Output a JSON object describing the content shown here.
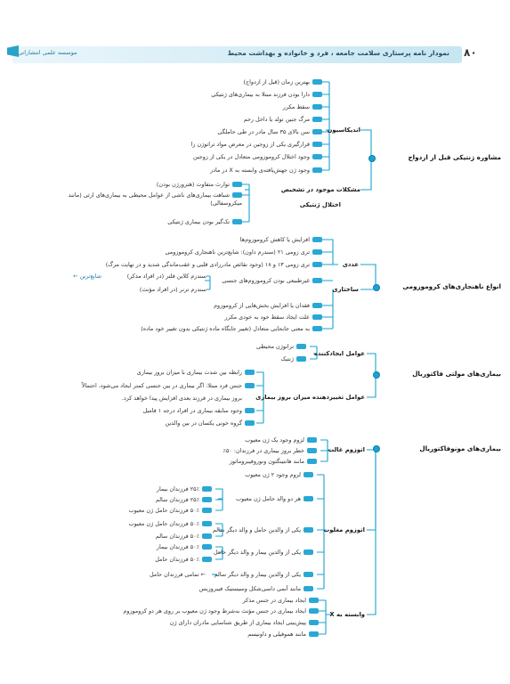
{
  "header": {
    "page_number": "۸۰",
    "title": "نمودار نامه پرستاری سلامت جامعه ، فرد و خانواده و بهداشت محیط",
    "brand": "موسسه علمی انتشاراتی"
  },
  "mindmap": {
    "genetic_counseling": {
      "title": "مشاوره ژنتیکی قبل از ازدواج",
      "indications": {
        "title": "اندیکاسیون",
        "items": [
          "بهترین زمان (قبل از ازدواج)",
          "دارا بودن فرزند مبتلا به بیماری‌های ژنتیکی",
          "سقط مکرر",
          "مرگ جنین تولد یا داخل رحم",
          "سن بالای ۳۵ سال مادر در طی حاملگی",
          "قرارگیری یکی از زوجین در معرض مواد تراتوژن زا",
          "وجود اختلال کروموزومی متعادل در یکی از زوجین",
          "وجود ژن جهش‌یافته‌ی وابسته به X در مادر"
        ]
      },
      "diagnosis_problems": {
        "title": "مشکلات موجود در تشخیص",
        "subtitle": "اختلال ژنتیکی",
        "items": [
          "توارث متفاوت (هترورژن بودن)",
          "شباهت بیماری‌های ناشی از عوامل محیطی به بیماری‌های ارثی (مانند میکروسفالی)",
          "تک‌گیر بودن بیماری ژنتیکی"
        ]
      }
    },
    "chromosomal": {
      "title": "انواع ناهنجاری‌های کروموزومی",
      "numeric": {
        "title": "عددی",
        "items": [
          "افزایش یا کاهش کروموزوم‌ها",
          "تری زومی ۲۱ (سندرم داون): شایع‌ترین ناهنجاری کروموزومی",
          "تری زومی ۱۳ و ۱۸ (وجود نقائص مادرزادی قلبی و عقب‌ماندگی شدید و در نهایت مرگ)",
          "غیرطبیعی بودن کروموزوم‌های جنسی"
        ],
        "sex_items": [
          "سندرم کلاین فلتر (در افراد مذکر)",
          "سندرم ترنر (در افراد مؤنث)"
        ],
        "common_label": "شایع‌ترین"
      },
      "structural": {
        "title": "ساختاری",
        "items": [
          "فقدان یا افزایش بخش‌هایی از کروموزوم",
          "علت ایجاد سقط خود به خودی مکرر",
          "به معنی جابجایی متعادل (تغییر جایگاه ماده ژنتیکی بدون تغییر خود ماده)"
        ]
      }
    },
    "multifactorial": {
      "title": "بیماری‌های مولتی فاکتوریال",
      "causes": {
        "title": "عوامل ایجادکننده",
        "items": [
          "ترانوژن محیطی",
          "ژنتیک"
        ]
      },
      "risk": {
        "title": "عوامل تغییردهنده میزان بروز بیماری",
        "items": [
          "رابطه بین شدت بیماری با میزان بروز بیماری",
          "جنس فرد مبتلا: اگر بیماری در بین جنسی کمتر ایجاد می‌شود، احتمالاً",
          "بروز بیماری در فرزند بعدی افزایش پیدا خواهد کرد.",
          "وجود سابقه بیماری در افراد درجه ۱ فامیل",
          "گروه خونی یکسان در بین والدین"
        ]
      }
    },
    "monogenic": {
      "title": "بیماری‌های مونوفاکتوریال",
      "dominant": {
        "title": "اتوزوم غالب",
        "items": [
          "لزوم وجود یک ژن معیوب",
          "خطر بروز بیماری در فرزندان: ۵۰٪",
          "مانند هانتینگتون ونوروفیبروماتوز"
        ]
      },
      "recessive": {
        "title": "اتوزوم مغلوب",
        "need": "لزوم وجود ۲ ژن معیوب",
        "carriers_both": {
          "label": "هر دو والد حامل ژن معیوب",
          "items": [
            "۲۵٪ فرزندان بیمار",
            "۲۵٪ فرزندان سالم",
            "۵۰٪ فرزندان حامل ژن معیوب"
          ]
        },
        "one_carrier": {
          "label": "یکی از والدین حامل و والد دیگر سالم",
          "items": [
            "۵۰٪ فرزندان حامل ژن معیوب",
            "۵۰٪ فرزندان سالم"
          ]
        },
        "one_sick": {
          "label": "یکی از والدین بیمار و والد دیگر حامل",
          "items": [
            "۵۰٪ فرزندان بیمار",
            "۵۰٪ فرزندان حامل"
          ]
        },
        "sick_healthy": {
          "label": "یکی از والدین بیمار و والد دیگر سالم",
          "result": "تمامی فرزندان حامل"
        },
        "example": "مانند آنمی داسی‌شکل وسیستیک فیبروزیس"
      },
      "x_linked": {
        "title": "وابسته به X",
        "items": [
          "ایجاد بیماری در جنس مذکر",
          "ایجاد بیماری در جنس مؤنث به‌شرط وجود ژن معیوب بر روی هر دو کروموزوم",
          "پیش‌بینی ایجاد بیماری از طریق شناسایی مادران دارای ژن",
          "مانند هموفیلی و داونیسم"
        ]
      }
    }
  }
}
